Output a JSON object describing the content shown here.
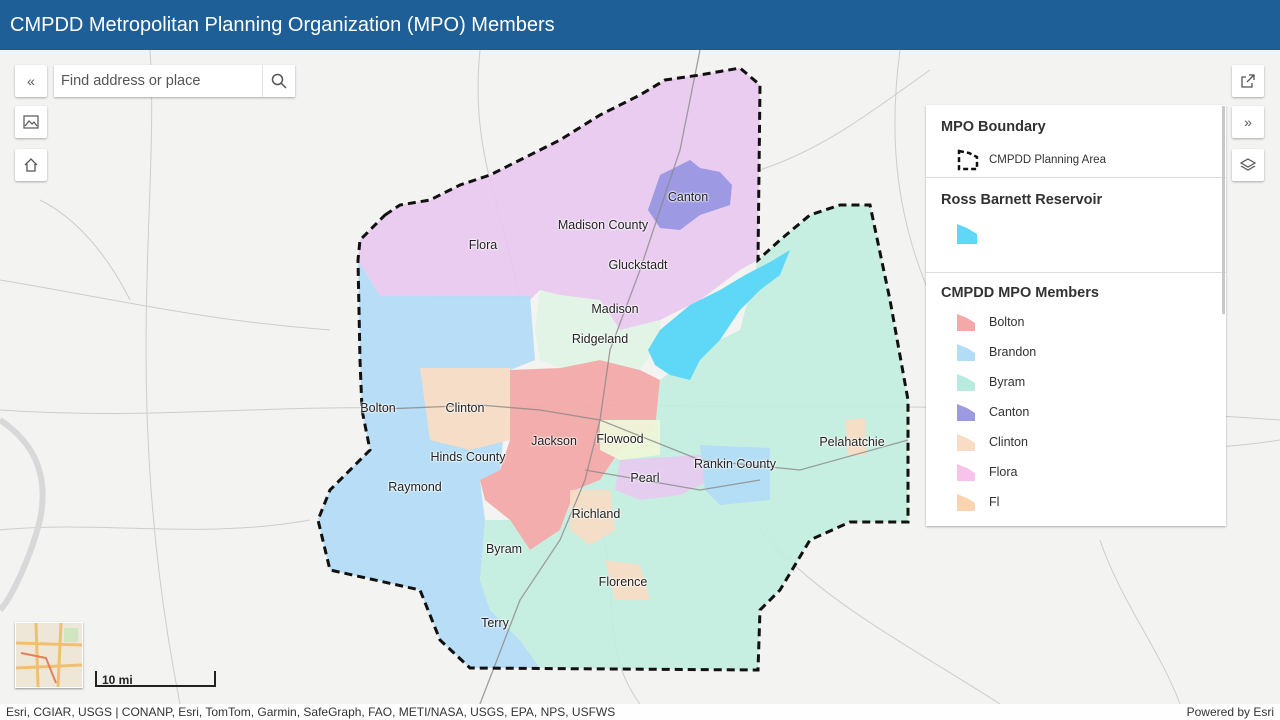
{
  "header": {
    "title": "CMPDD Metropolitan Planning Organization (MPO) Members"
  },
  "search": {
    "placeholder": "Find address or place"
  },
  "icons": {
    "collapse": "double-chevron-left-icon",
    "search": "search-icon",
    "basemap": "basemap-gallery-icon",
    "home": "home-icon",
    "share": "share-icon",
    "expand": "double-chevron-right-icon",
    "layers": "layer-list-icon"
  },
  "legend": {
    "boundary": {
      "title": "MPO Boundary",
      "item": "CMPDD Planning Area"
    },
    "reservoir": {
      "title": "Ross Barnett Reservoir",
      "color": "#5fd8f7"
    },
    "members": {
      "title": "CMPDD MPO Members",
      "items": [
        {
          "label": "Bolton",
          "color": "#f4a8a8"
        },
        {
          "label": "Brandon",
          "color": "#b3dcf5"
        },
        {
          "label": "Byram",
          "color": "#b8ebde"
        },
        {
          "label": "Canton",
          "color": "#9c9be0"
        },
        {
          "label": "Clinton",
          "color": "#f9dcc4"
        },
        {
          "label": "Flora",
          "color": "#f6c4ea"
        },
        {
          "label": "Fl",
          "color": "#fbd3b0"
        }
      ]
    }
  },
  "places": {
    "canton": "Canton",
    "madison_county": "Madison County",
    "flora": "Flora",
    "gluckstadt": "Gluckstadt",
    "madison": "Madison",
    "ridgeland": "Ridgeland",
    "bolton": "Bolton",
    "clinton": "Clinton",
    "jackson": "Jackson",
    "flowood": "Flowood",
    "pelahatchie": "Pelahatchie",
    "hinds_county": "Hinds County",
    "rankin_county": "Rankin County",
    "raymond": "Raymond",
    "pearl": "Pearl",
    "richland": "Richland",
    "byram": "Byram",
    "florence": "Florence",
    "terry": "Terry"
  },
  "scale": {
    "label": "10 mi"
  },
  "attribution": {
    "left": "Esri, CGIAR, USGS | CONANP, Esri, TomTom, Garmin, SafeGraph, FAO, METI/NASA, USGS, EPA, NPS, USFWS",
    "right": "Powered by Esri"
  }
}
